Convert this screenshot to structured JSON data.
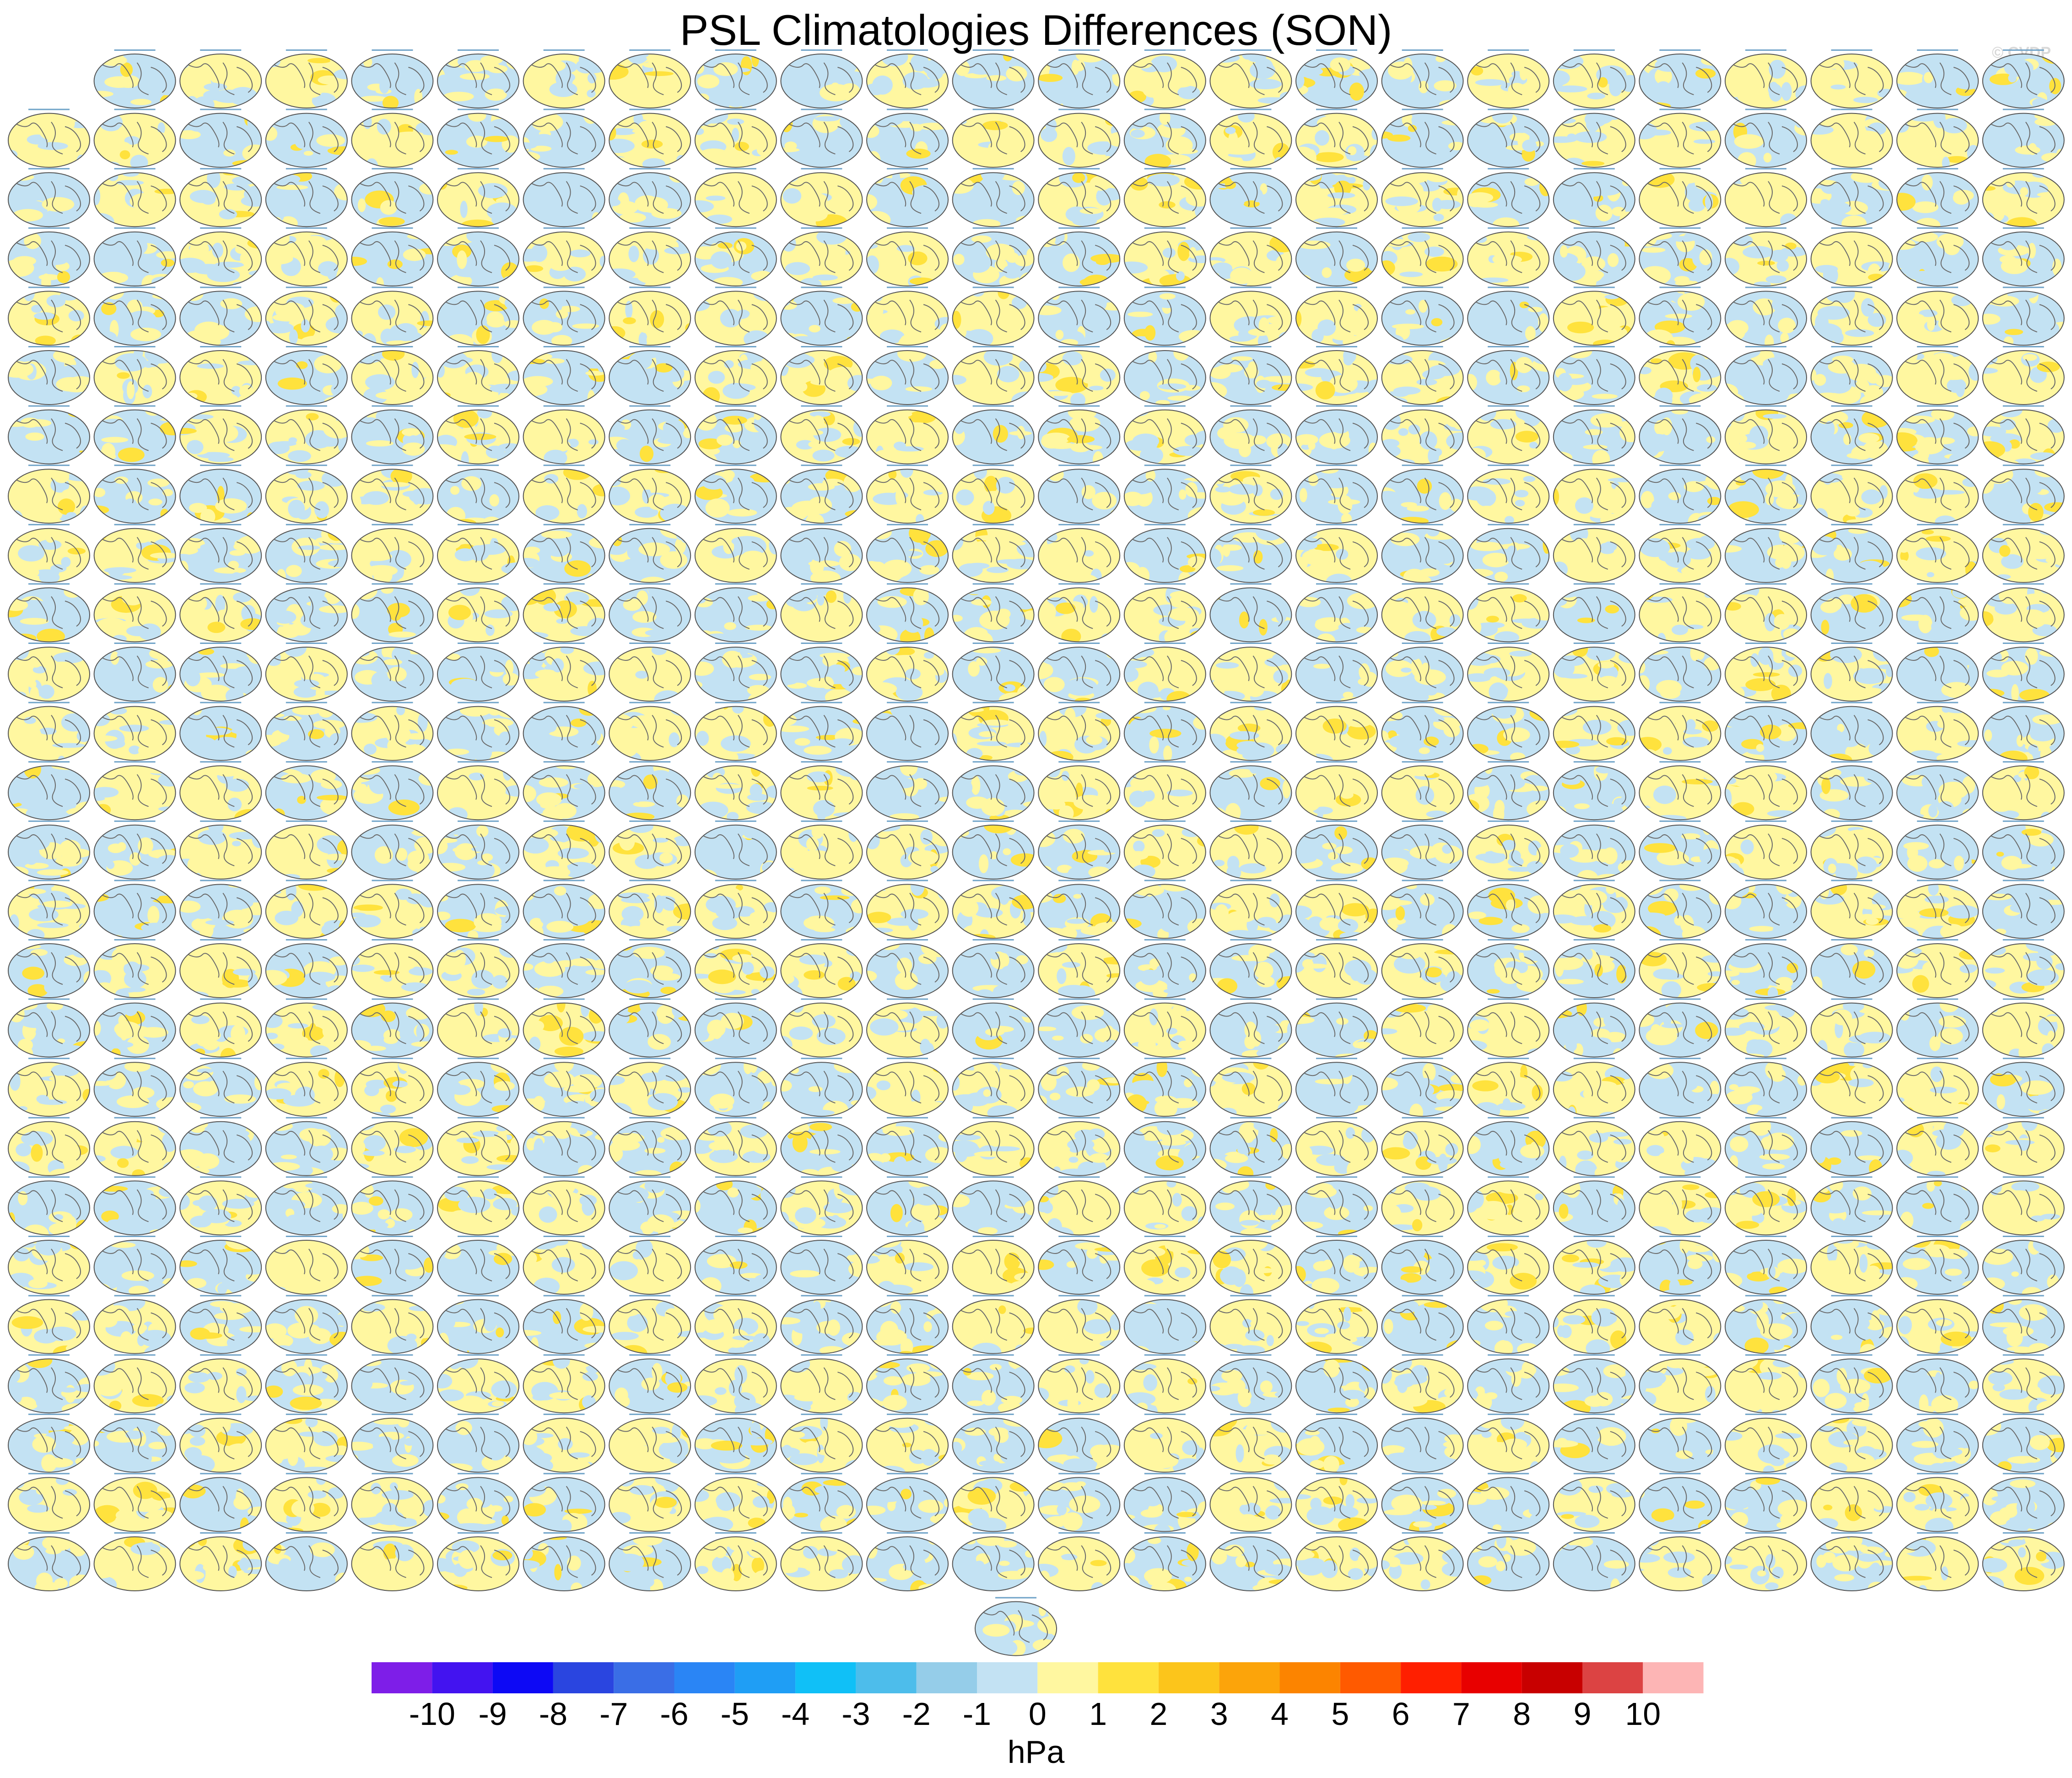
{
  "title": "PSL Climatologies Differences (SON)",
  "watermark": "© CVDP",
  "chart_data": {
    "type": "heatmap",
    "title": "PSL Climatologies Differences (SON)",
    "panel_layout": {
      "columns": 24,
      "rows": 26,
      "row_1_panels": 23,
      "rows_2_to_26_panels": 24,
      "extra_panels_below": 1,
      "total_panels": 624
    },
    "map_projection": "global Robinson-style ellipse with coastlines",
    "colorbar": {
      "units": "hPa",
      "tick_labels": [
        "-10",
        "-9",
        "-8",
        "-7",
        "-6",
        "-5",
        "-4",
        "-3",
        "-2",
        "-1",
        "0",
        "1",
        "2",
        "3",
        "4",
        "5",
        "6",
        "7",
        "8",
        "9",
        "10"
      ],
      "colors": [
        "#7e1ee8",
        "#4313f0",
        "#0d09f5",
        "#2a45e0",
        "#3a6ee6",
        "#2a85f5",
        "#1f9ef5",
        "#10c0f7",
        "#4dbdeb",
        "#95cde9",
        "#c3e2f3",
        "#fff7a0",
        "#ffe23d",
        "#fcc51b",
        "#fca40a",
        "#fc8400",
        "#ff5a00",
        "#ff1f00",
        "#e80000",
        "#c80000",
        "#dc4343",
        "#fdb5b5"
      ]
    }
  }
}
